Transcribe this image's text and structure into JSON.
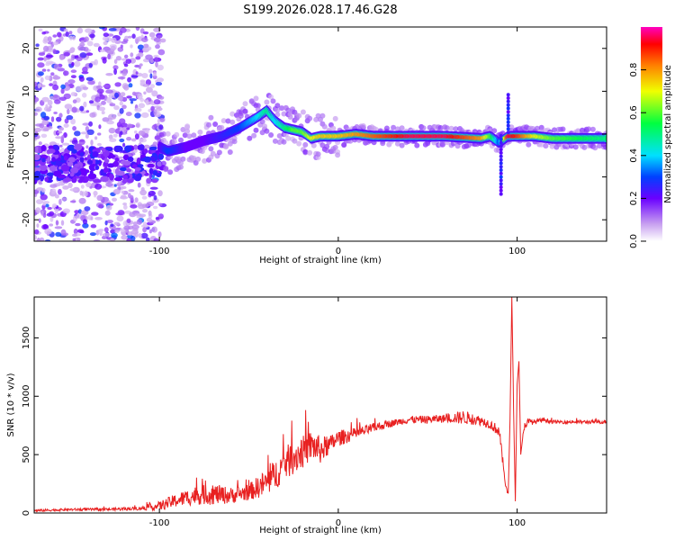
{
  "title": "S199.2026.028.17.46.G28",
  "chart_data": [
    {
      "type": "heatmap",
      "xlabel": "Height of straight line (km)",
      "ylabel": "Frequency (Hz)",
      "xlim": [
        -170,
        150
      ],
      "ylim": [
        -25,
        25
      ],
      "x_ticks": [
        -100,
        0,
        100
      ],
      "y_ticks": [
        -20,
        -10,
        0,
        10,
        20
      ],
      "colorbar": {
        "label": "Normalized spectral amplitude",
        "range": [
          0,
          1
        ],
        "ticks": [
          "0.0",
          "0.2",
          "0.4",
          "0.6",
          "0.8"
        ]
      },
      "ridge": {
        "x": [
          -100,
          -95,
          -85,
          -75,
          -65,
          -55,
          -45,
          -40,
          -35,
          -30,
          -25,
          -20,
          -15,
          -10,
          0,
          10,
          20,
          40,
          60,
          80,
          85,
          90,
          95,
          100,
          110,
          120,
          150
        ],
        "freq": [
          -3,
          -4,
          -3,
          -1.5,
          -0.5,
          1.5,
          4,
          5.5,
          3,
          1.5,
          1,
          0.5,
          -1,
          -0.5,
          -0.5,
          0,
          -0.5,
          -0.5,
          -0.5,
          -1,
          -0.5,
          -2,
          -0.5,
          -0.5,
          -0.5,
          -1,
          -1
        ],
        "amplitude": [
          0.2,
          0.3,
          0.2,
          0.2,
          0.25,
          0.3,
          0.4,
          0.5,
          0.4,
          0.5,
          0.6,
          0.6,
          0.7,
          0.75,
          0.75,
          0.8,
          0.85,
          0.95,
          0.95,
          0.8,
          0.6,
          0.3,
          0.95,
          0.9,
          0.7,
          0.6,
          0.5
        ]
      }
    },
    {
      "type": "line",
      "xlabel": "Height of straight line (km)",
      "ylabel": "SNR (10 * v/v)",
      "xlim": [
        -170,
        150
      ],
      "ylim": [
        0,
        1850
      ],
      "x_ticks": [
        -100,
        0,
        100
      ],
      "y_ticks": [
        0,
        500,
        1000,
        1500
      ],
      "series": [
        {
          "name": "SNR",
          "color": "#e82020",
          "x": [
            -170,
            -150,
            -130,
            -110,
            -100,
            -90,
            -80,
            -70,
            -60,
            -50,
            -40,
            -35,
            -30,
            -25,
            -20,
            -15,
            -10,
            -5,
            0,
            10,
            20,
            30,
            40,
            50,
            60,
            70,
            80,
            85,
            90,
            93,
            95,
            96,
            97,
            98,
            99,
            100,
            101,
            102,
            104,
            106,
            110,
            115,
            120,
            130,
            140,
            150
          ],
          "y": [
            20,
            30,
            30,
            40,
            60,
            110,
            150,
            160,
            150,
            180,
            260,
            330,
            420,
            480,
            520,
            580,
            540,
            580,
            640,
            680,
            730,
            770,
            800,
            800,
            810,
            820,
            790,
            760,
            700,
            300,
            150,
            800,
            1850,
            900,
            100,
            1100,
            1300,
            500,
            750,
            780,
            780,
            800,
            780,
            780,
            780,
            780
          ],
          "noise": [
            10,
            10,
            12,
            15,
            40,
            60,
            80,
            90,
            70,
            70,
            120,
            130,
            140,
            150,
            140,
            130,
            120,
            80,
            70,
            50,
            40,
            30,
            30,
            35,
            35,
            60,
            40,
            40,
            50,
            40,
            30,
            0,
            0,
            0,
            0,
            0,
            0,
            0,
            40,
            30,
            20,
            20,
            15,
            15,
            15,
            15
          ]
        }
      ]
    }
  ]
}
